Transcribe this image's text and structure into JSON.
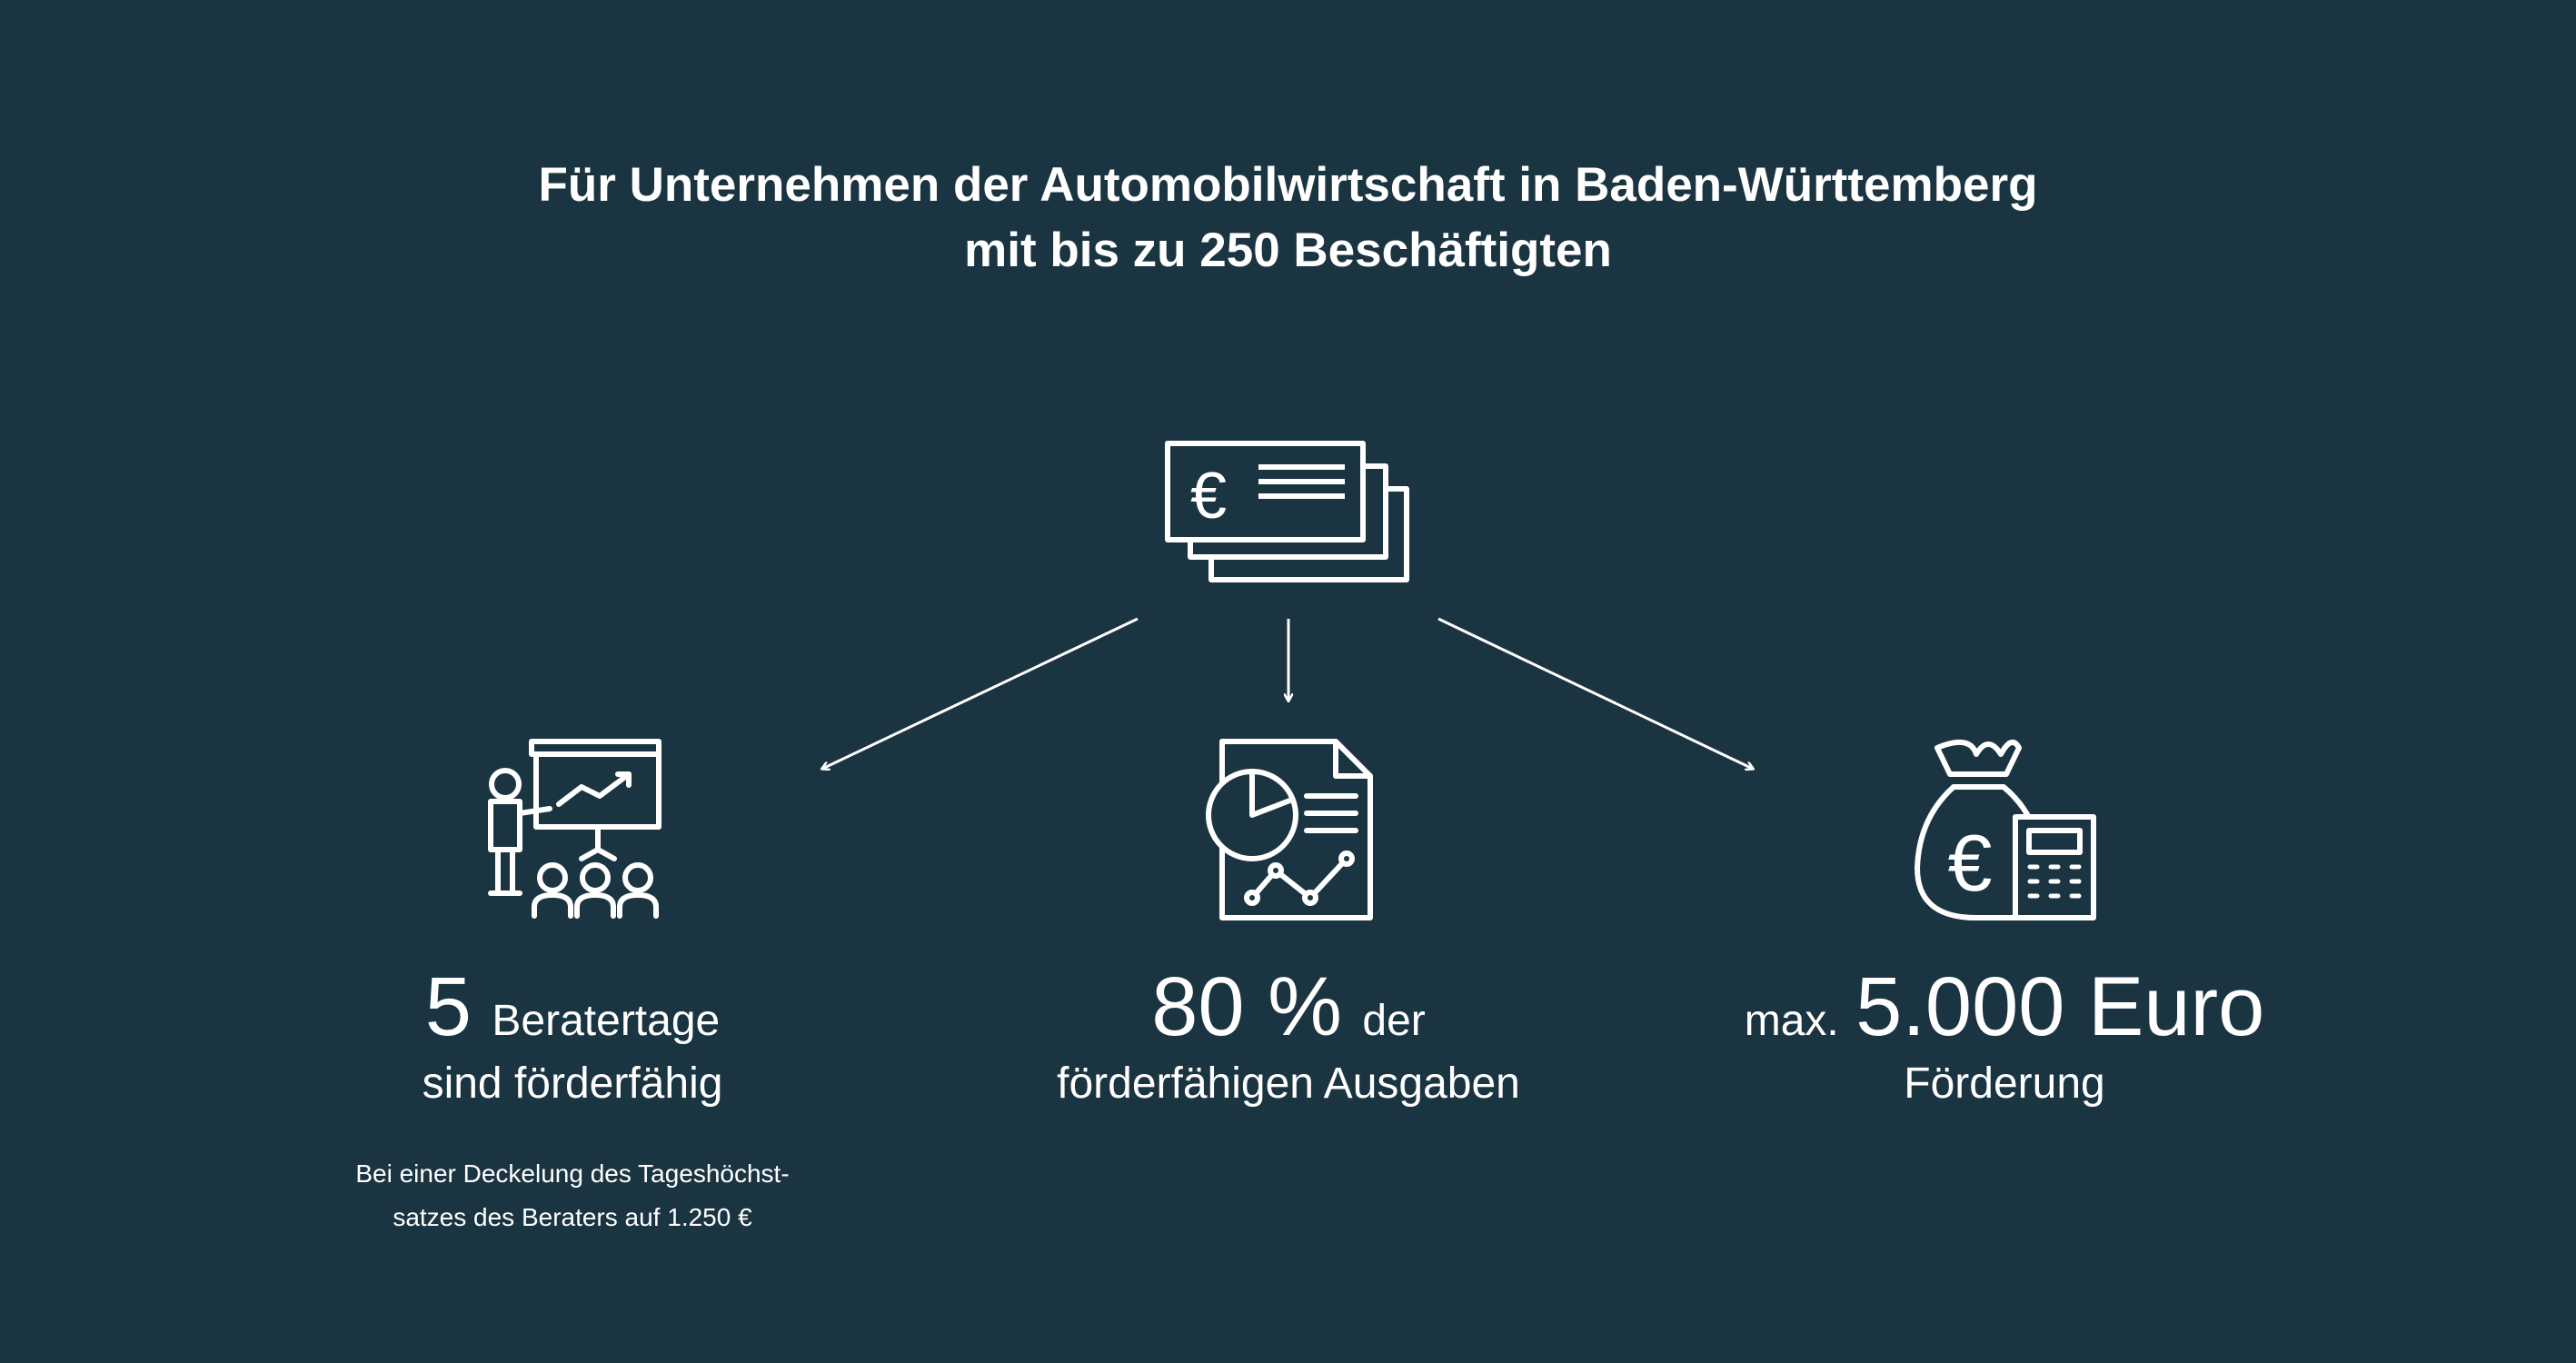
{
  "headline": {
    "line1": "Für Unternehmen der Automobilwirtschaft in Baden-Württemberg",
    "line2": "mit bis zu 250 Beschäftigten"
  },
  "icons": {
    "top": "euro-cheques-icon",
    "left": "presentation-training-icon",
    "center": "report-chart-document-icon",
    "right": "money-bag-calculator-icon",
    "euro_symbol": "€"
  },
  "left": {
    "number": "5",
    "unit": "Beratertage",
    "line2": "sind förderfähig",
    "note_line1": "Bei einer Deckelung des Tageshöchst-",
    "note_line2": "satzes des Beraters auf 1.250 €"
  },
  "center": {
    "number": "80 %",
    "unit": "der",
    "line2": "förderfähigen Ausgaben"
  },
  "right": {
    "prefix": "max.",
    "amount": "5.000 Euro",
    "line2": "Förderung"
  },
  "colors": {
    "background": "#1b3441",
    "foreground": "#ffffff"
  }
}
